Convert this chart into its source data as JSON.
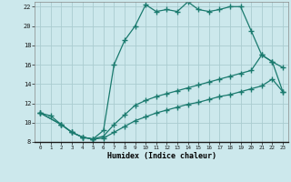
{
  "xlabel": "Humidex (Indice chaleur)",
  "background_color": "#cce8ec",
  "grid_color": "#aaccd0",
  "line_color": "#1a7a6e",
  "xlim": [
    -0.5,
    23.5
  ],
  "ylim": [
    8,
    22.5
  ],
  "xticks": [
    0,
    1,
    2,
    3,
    4,
    5,
    6,
    7,
    8,
    9,
    10,
    11,
    12,
    13,
    14,
    15,
    16,
    17,
    18,
    19,
    20,
    21,
    22,
    23
  ],
  "yticks": [
    8,
    10,
    12,
    14,
    16,
    18,
    20,
    22
  ],
  "series1_x": [
    0,
    1,
    2,
    3,
    4,
    5,
    6,
    7,
    8,
    9,
    10,
    11,
    12,
    13,
    14,
    15,
    16,
    17,
    18,
    19,
    20,
    21,
    22,
    23
  ],
  "series1_y": [
    11.0,
    10.7,
    9.8,
    9.0,
    8.5,
    8.3,
    9.2,
    16.0,
    18.5,
    20.0,
    22.2,
    21.5,
    21.7,
    21.5,
    22.5,
    21.7,
    21.5,
    21.7,
    22.0,
    22.0,
    19.5,
    17.0,
    16.3,
    15.7
  ],
  "series2_x": [
    0,
    2,
    3,
    4,
    5,
    6,
    7,
    8,
    9,
    10,
    11,
    12,
    13,
    14,
    15,
    16,
    17,
    18,
    19,
    20,
    21,
    22,
    23
  ],
  "series2_y": [
    11.0,
    9.8,
    9.0,
    8.5,
    8.3,
    8.6,
    9.8,
    10.8,
    11.8,
    12.3,
    12.7,
    13.0,
    13.3,
    13.6,
    13.9,
    14.2,
    14.5,
    14.8,
    15.1,
    15.4,
    17.0,
    16.3,
    13.2
  ],
  "series3_x": [
    0,
    2,
    3,
    4,
    5,
    6,
    7,
    8,
    9,
    10,
    11,
    12,
    13,
    14,
    15,
    16,
    17,
    18,
    19,
    20,
    21,
    22,
    23
  ],
  "series3_y": [
    11.0,
    9.8,
    9.0,
    8.5,
    8.3,
    8.4,
    9.0,
    9.6,
    10.2,
    10.6,
    11.0,
    11.3,
    11.6,
    11.9,
    12.1,
    12.4,
    12.7,
    12.9,
    13.2,
    13.5,
    13.8,
    14.5,
    13.2
  ]
}
